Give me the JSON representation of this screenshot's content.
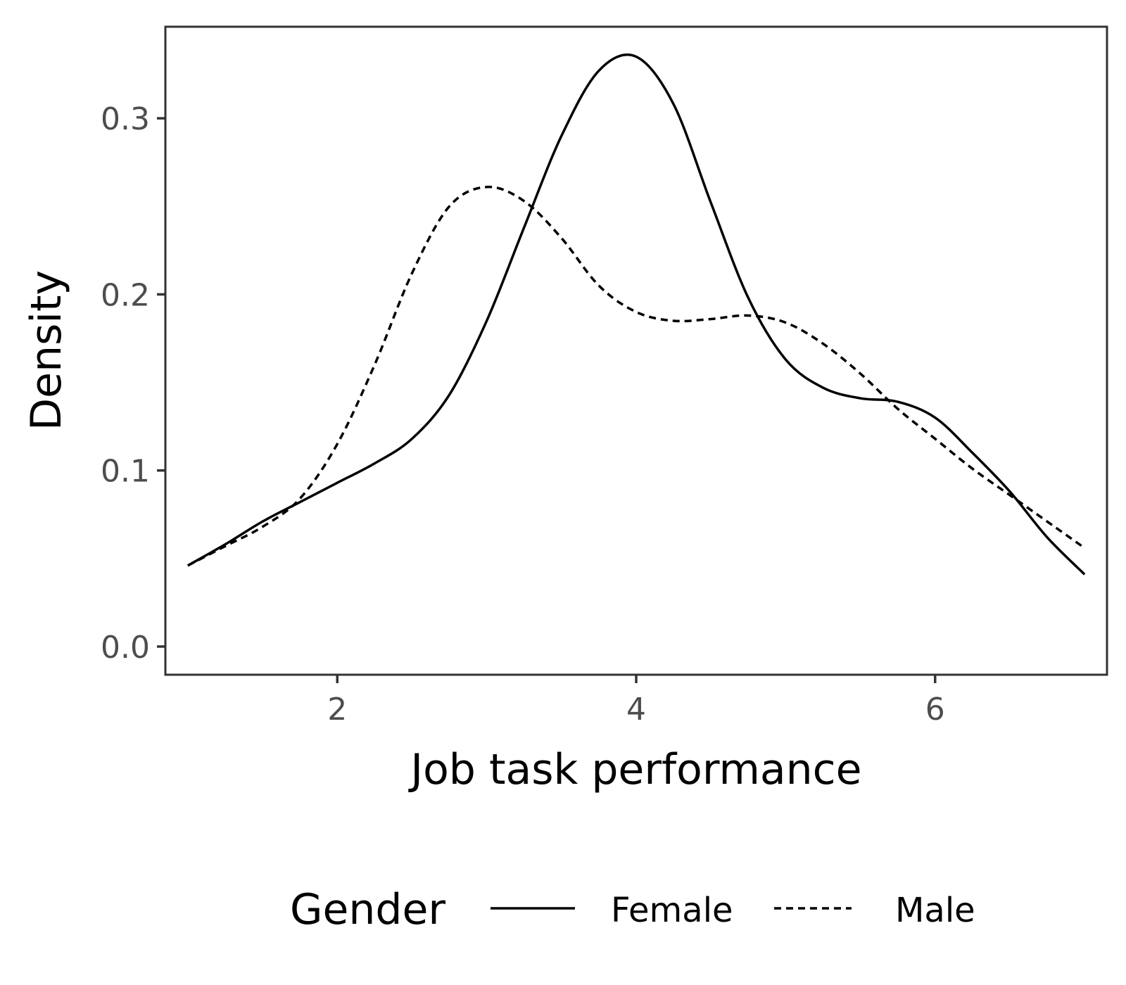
{
  "chart_data": {
    "type": "line",
    "xlabel": "Job task performance",
    "ylabel": "Density",
    "xlim": [
      0.85,
      7.15
    ],
    "ylim": [
      -0.016,
      0.352
    ],
    "xticks": [
      2,
      4,
      6
    ],
    "xtick_labels": [
      "2",
      "4",
      "6"
    ],
    "yticks": [
      0.0,
      0.1,
      0.2,
      0.3
    ],
    "ytick_labels": [
      "0.0",
      "0.1",
      "0.2",
      "0.3"
    ],
    "grid": false,
    "legend": {
      "title": "Gender",
      "position": "bottom"
    },
    "series": [
      {
        "name": "Female",
        "line_style": "solid",
        "color": "#000000",
        "points": [
          [
            1.0,
            0.046
          ],
          [
            1.25,
            0.058
          ],
          [
            1.5,
            0.071
          ],
          [
            1.75,
            0.082
          ],
          [
            2.0,
            0.093
          ],
          [
            2.25,
            0.104
          ],
          [
            2.5,
            0.118
          ],
          [
            2.75,
            0.143
          ],
          [
            3.0,
            0.185
          ],
          [
            3.25,
            0.238
          ],
          [
            3.5,
            0.29
          ],
          [
            3.75,
            0.327
          ],
          [
            4.0,
            0.335
          ],
          [
            4.25,
            0.308
          ],
          [
            4.5,
            0.252
          ],
          [
            4.75,
            0.198
          ],
          [
            5.0,
            0.163
          ],
          [
            5.25,
            0.147
          ],
          [
            5.5,
            0.141
          ],
          [
            5.75,
            0.139
          ],
          [
            6.0,
            0.13
          ],
          [
            6.25,
            0.11
          ],
          [
            6.5,
            0.088
          ],
          [
            6.75,
            0.062
          ],
          [
            7.0,
            0.041
          ]
        ]
      },
      {
        "name": "Male",
        "line_style": "dashed",
        "color": "#000000",
        "points": [
          [
            1.0,
            0.046
          ],
          [
            1.25,
            0.057
          ],
          [
            1.5,
            0.068
          ],
          [
            1.75,
            0.084
          ],
          [
            2.0,
            0.115
          ],
          [
            2.25,
            0.16
          ],
          [
            2.5,
            0.212
          ],
          [
            2.75,
            0.25
          ],
          [
            3.0,
            0.261
          ],
          [
            3.25,
            0.253
          ],
          [
            3.5,
            0.232
          ],
          [
            3.75,
            0.205
          ],
          [
            4.0,
            0.19
          ],
          [
            4.25,
            0.185
          ],
          [
            4.5,
            0.186
          ],
          [
            4.75,
            0.188
          ],
          [
            5.0,
            0.184
          ],
          [
            5.25,
            0.172
          ],
          [
            5.5,
            0.155
          ],
          [
            5.75,
            0.135
          ],
          [
            6.0,
            0.118
          ],
          [
            6.25,
            0.101
          ],
          [
            6.5,
            0.086
          ],
          [
            6.75,
            0.071
          ],
          [
            7.0,
            0.056
          ]
        ]
      }
    ]
  }
}
